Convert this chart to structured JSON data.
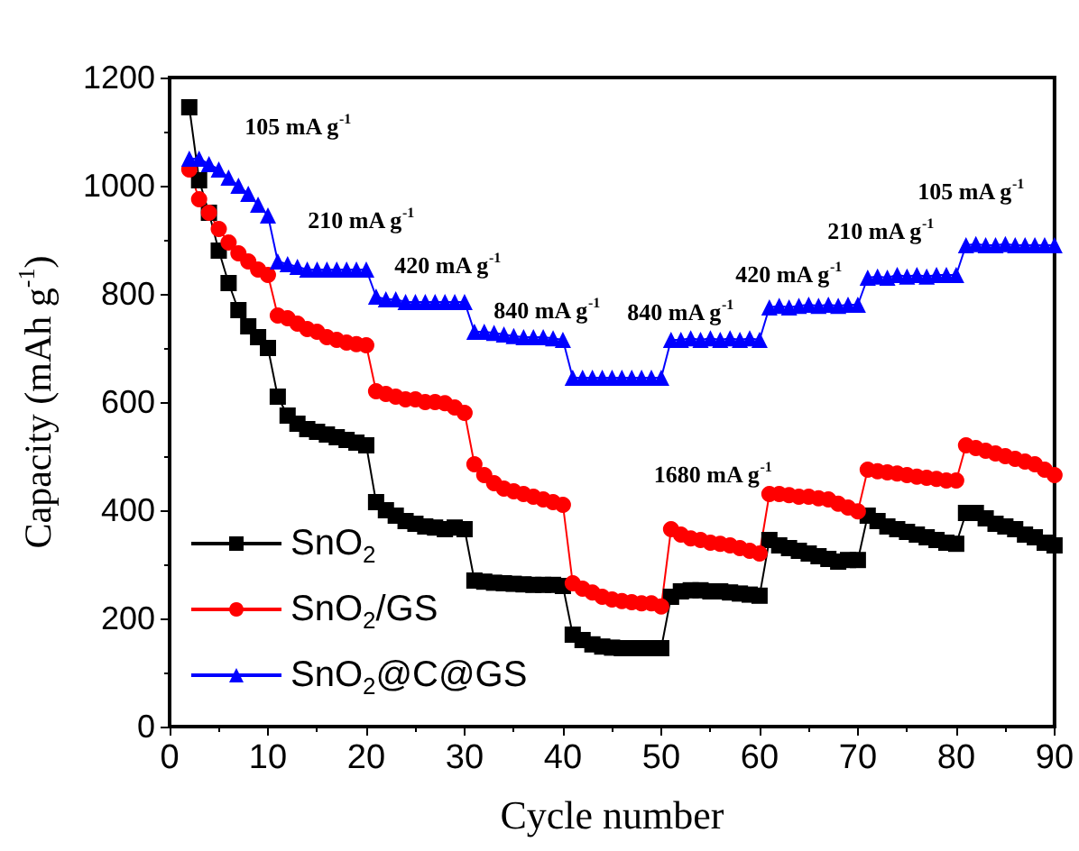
{
  "chart_data": {
    "type": "line",
    "xlabel": "Cycle number",
    "ylabel": "Capacity (mAh g$^{-1}$)",
    "xlim": [
      0,
      90
    ],
    "xticks": [
      0,
      10,
      20,
      30,
      40,
      50,
      60,
      70,
      80,
      90
    ],
    "ylim": [
      0,
      1200
    ],
    "yticks": [
      0,
      200,
      400,
      600,
      800,
      1000,
      1200
    ],
    "grid": false,
    "legend": "bottom left",
    "line_style": "solid",
    "x": [
      2,
      3,
      4,
      5,
      6,
      7,
      8,
      9,
      10,
      11,
      12,
      13,
      14,
      15,
      16,
      17,
      18,
      19,
      20,
      21,
      22,
      23,
      24,
      25,
      26,
      27,
      28,
      29,
      30,
      31,
      32,
      33,
      34,
      35,
      36,
      37,
      38,
      39,
      40,
      41,
      42,
      43,
      44,
      45,
      46,
      47,
      48,
      49,
      50,
      51,
      52,
      53,
      54,
      55,
      56,
      57,
      58,
      59,
      60,
      61,
      62,
      63,
      64,
      65,
      66,
      67,
      68,
      69,
      70,
      71,
      72,
      73,
      74,
      75,
      76,
      77,
      78,
      79,
      80,
      81,
      82,
      83,
      84,
      85,
      86,
      87,
      88,
      89,
      90
    ],
    "series": [
      {
        "name": "SnO$_{2}$",
        "color": "#000000",
        "marker": "square",
        "values": [
          1145,
          1010,
          950,
          880,
          820,
          770,
          740,
          720,
          700,
          610,
          575,
          560,
          550,
          545,
          540,
          535,
          530,
          525,
          520,
          415,
          400,
          390,
          380,
          375,
          370,
          368,
          365,
          368,
          365,
          270,
          268,
          266,
          265,
          264,
          263,
          262,
          262,
          262,
          260,
          170,
          160,
          152,
          148,
          146,
          145,
          145,
          145,
          145,
          145,
          240,
          250,
          252,
          252,
          250,
          250,
          248,
          246,
          244,
          242,
          345,
          335,
          330,
          325,
          320,
          315,
          310,
          305,
          308,
          308,
          390,
          380,
          370,
          365,
          360,
          355,
          350,
          345,
          340,
          338,
          395,
          395,
          385,
          375,
          370,
          365,
          355,
          350,
          340,
          335
        ]
      },
      {
        "name": "SnO$_{2}$/GS",
        "color": "#ff0000",
        "marker": "circle",
        "values": [
          1030,
          975,
          950,
          920,
          895,
          875,
          860,
          845,
          835,
          760,
          755,
          745,
          735,
          730,
          720,
          715,
          710,
          707,
          705,
          620,
          615,
          610,
          605,
          605,
          600,
          600,
          598,
          590,
          580,
          485,
          465,
          450,
          440,
          435,
          430,
          425,
          420,
          415,
          410,
          265,
          255,
          248,
          240,
          235,
          232,
          230,
          228,
          228,
          222,
          365,
          355,
          348,
          345,
          340,
          338,
          335,
          330,
          325,
          320,
          430,
          430,
          428,
          425,
          425,
          422,
          420,
          412,
          405,
          398,
          475,
          472,
          470,
          468,
          465,
          462,
          460,
          458,
          455,
          455,
          520,
          515,
          510,
          505,
          500,
          495,
          490,
          485,
          475,
          465
        ]
      },
      {
        "name": "SnO$_{2}$@C@GS",
        "color": "#0000ff",
        "marker": "triangle",
        "values": [
          1050,
          1050,
          1040,
          1030,
          1015,
          1000,
          985,
          965,
          945,
          860,
          855,
          850,
          845,
          845,
          845,
          845,
          845,
          845,
          845,
          795,
          790,
          790,
          785,
          785,
          785,
          785,
          785,
          785,
          785,
          730,
          730,
          728,
          725,
          722,
          720,
          720,
          720,
          718,
          715,
          645,
          645,
          645,
          645,
          645,
          645,
          645,
          645,
          645,
          645,
          715,
          715,
          718,
          715,
          718,
          715,
          718,
          715,
          718,
          715,
          775,
          778,
          775,
          778,
          780,
          778,
          780,
          778,
          780,
          780,
          830,
          832,
          830,
          835,
          832,
          835,
          832,
          835,
          835,
          835,
          890,
          892,
          890,
          890,
          892,
          890,
          890,
          890,
          890,
          890
        ]
      }
    ],
    "annotations": [
      "105 mA g$^{-1}$",
      "210 mA g$^{-1}$",
      "420 mA g$^{-1}$",
      "840 mA g$^{-1}$",
      "1680 mA g$^{-1}$",
      "840 mA g$^{-1}$",
      "420 mA g$^{-1}$",
      "210 mA g$^{-1}$",
      "105 mA g$^{-1}$"
    ]
  }
}
